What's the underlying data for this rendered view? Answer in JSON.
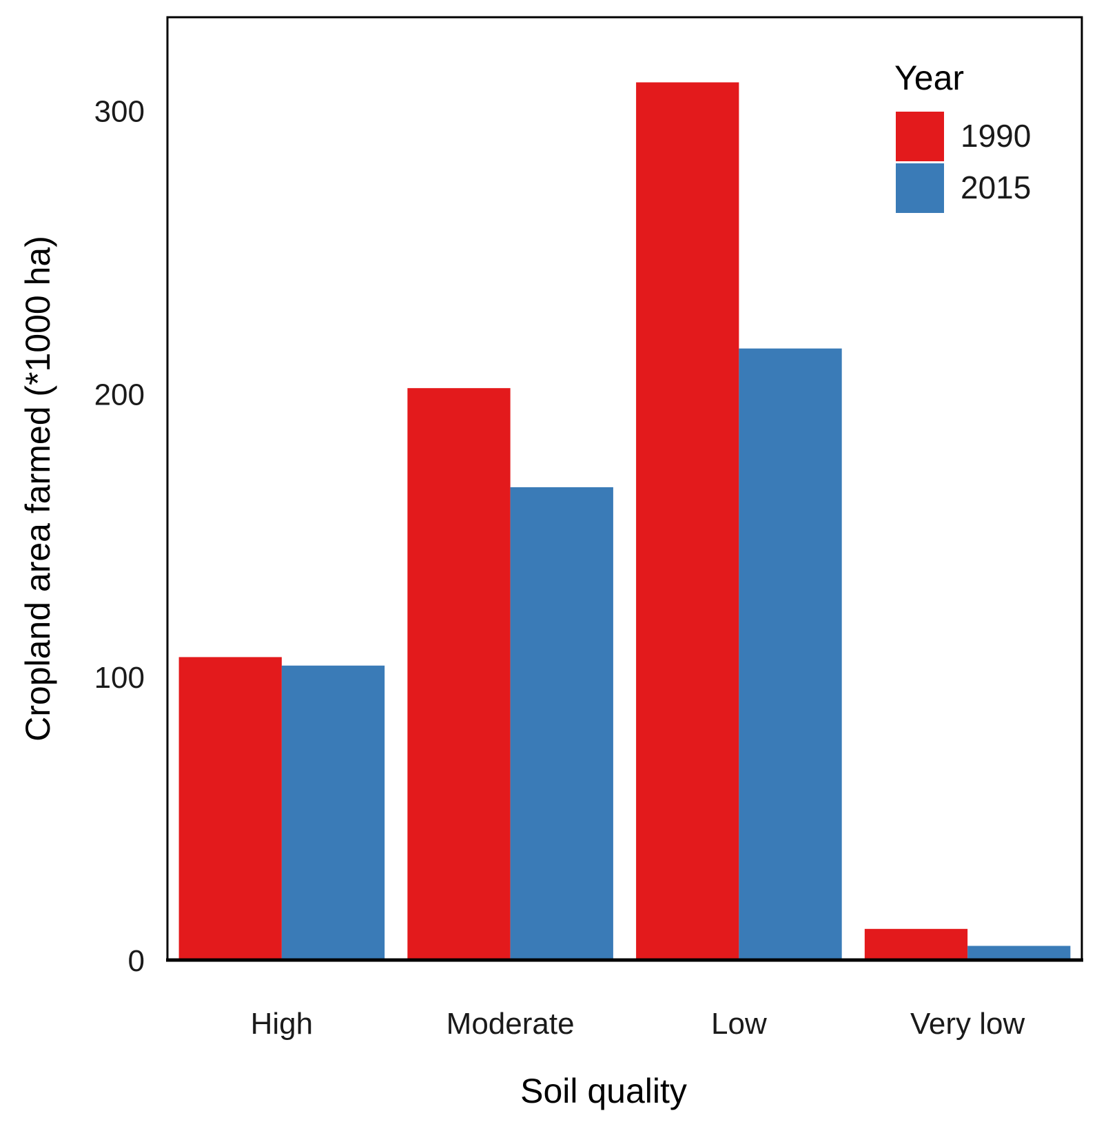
{
  "chart_data": {
    "type": "bar",
    "title": "",
    "xlabel": "Soil quality",
    "ylabel": "Cropland area farmed (*1000 ha)",
    "categories": [
      "High",
      "Moderate",
      "Low",
      "Very low"
    ],
    "series": [
      {
        "name": "1990",
        "color": "#e31a1c",
        "values": [
          107,
          202,
          310,
          11
        ]
      },
      {
        "name": "2015",
        "color": "#3a7bb7",
        "values": [
          104,
          167,
          216,
          5
        ]
      }
    ],
    "yticks": [
      "0",
      "100",
      "200",
      "300"
    ],
    "ylim": [
      0,
      333
    ],
    "legend": {
      "title": "Year",
      "position": "top-right"
    },
    "grid": false
  }
}
